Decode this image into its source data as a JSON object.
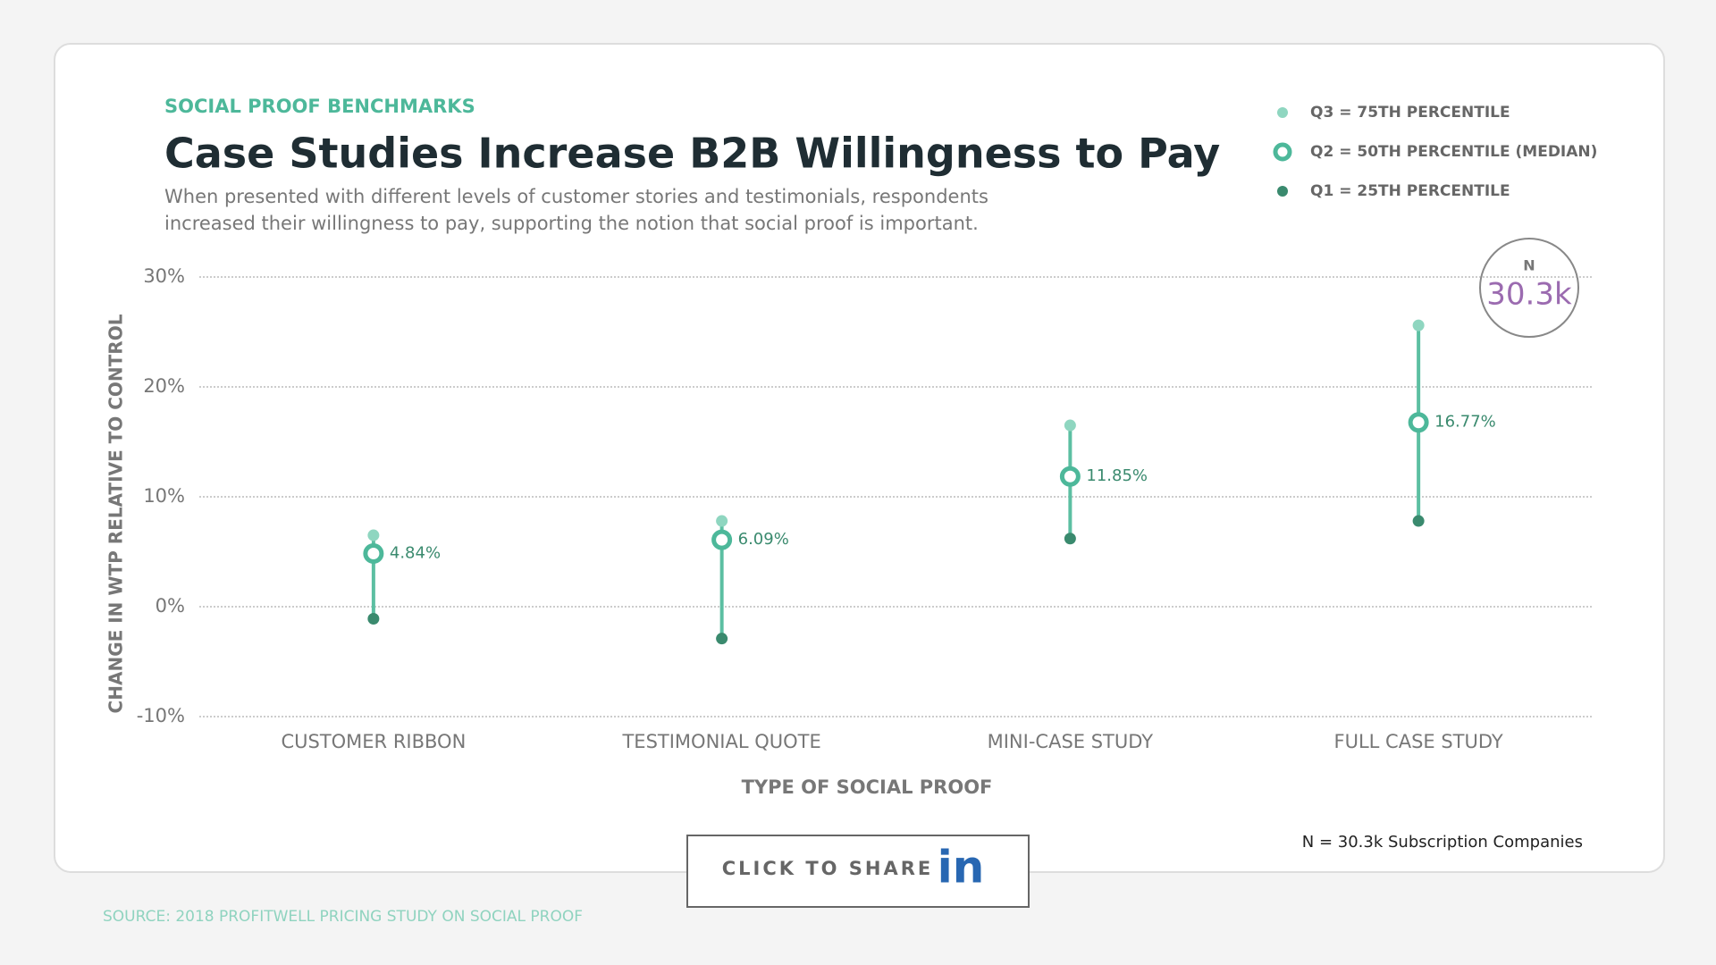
{
  "chart_data": {
    "type": "dot-range",
    "eyebrow": "SOCIAL PROOF BENCHMARKS",
    "title": "Case Studies Increase B2B Willingness to Pay",
    "subtitle": "When presented with different levels of customer stories and testimonials, respondents increased their willingness to pay, supporting the notion that social proof is important.",
    "y_label": "CHANGE IN WTP RELATIVE TO CONTROL",
    "x_label": "TYPE OF SOCIAL PROOF",
    "categories": [
      "CUSTOMER RIBBON",
      "TESTIMONIAL QUOTE",
      "MINI-CASE STUDY",
      "FULL CASE STUDY"
    ],
    "series": [
      {
        "name": "Q3 = 75TH PERCENTILE",
        "color": "#8fd6c0",
        "marker": "dot",
        "values": [
          6.5,
          7.8,
          16.5,
          25.6
        ]
      },
      {
        "name": "Q2 = 50TH PERCENTILE (MEDIAN)",
        "color": "#4db89a",
        "marker": "ring",
        "values": [
          4.84,
          6.09,
          11.85,
          16.77
        ],
        "value_labels": [
          "4.84%",
          "6.09%",
          "11.85%",
          "16.77%"
        ]
      },
      {
        "name": "Q1 = 25TH PERCENTILE",
        "color": "#3a8a6e",
        "marker": "dot",
        "values": [
          -1.1,
          -2.9,
          6.2,
          7.8
        ]
      }
    ],
    "range_color": "#5cbfa2",
    "ylim": [
      -10,
      30
    ],
    "yticks": [
      {
        "value": -10,
        "label": "-10%"
      },
      {
        "value": 0,
        "label": "0%"
      },
      {
        "value": 10,
        "label": "10%"
      },
      {
        "value": 20,
        "label": "20%"
      },
      {
        "value": 30,
        "label": "30%"
      }
    ],
    "grid": true,
    "legend": "top-right",
    "badge": {
      "label": "N",
      "value": "30.3k"
    },
    "footnote": "N = 30.3k Subscription Companies",
    "share_button": {
      "label": "CLICK TO SHARE",
      "icon": "in"
    },
    "source": "SOURCE: 2018 PROFITWELL PRICING STUDY ON SOCIAL PROOF"
  }
}
